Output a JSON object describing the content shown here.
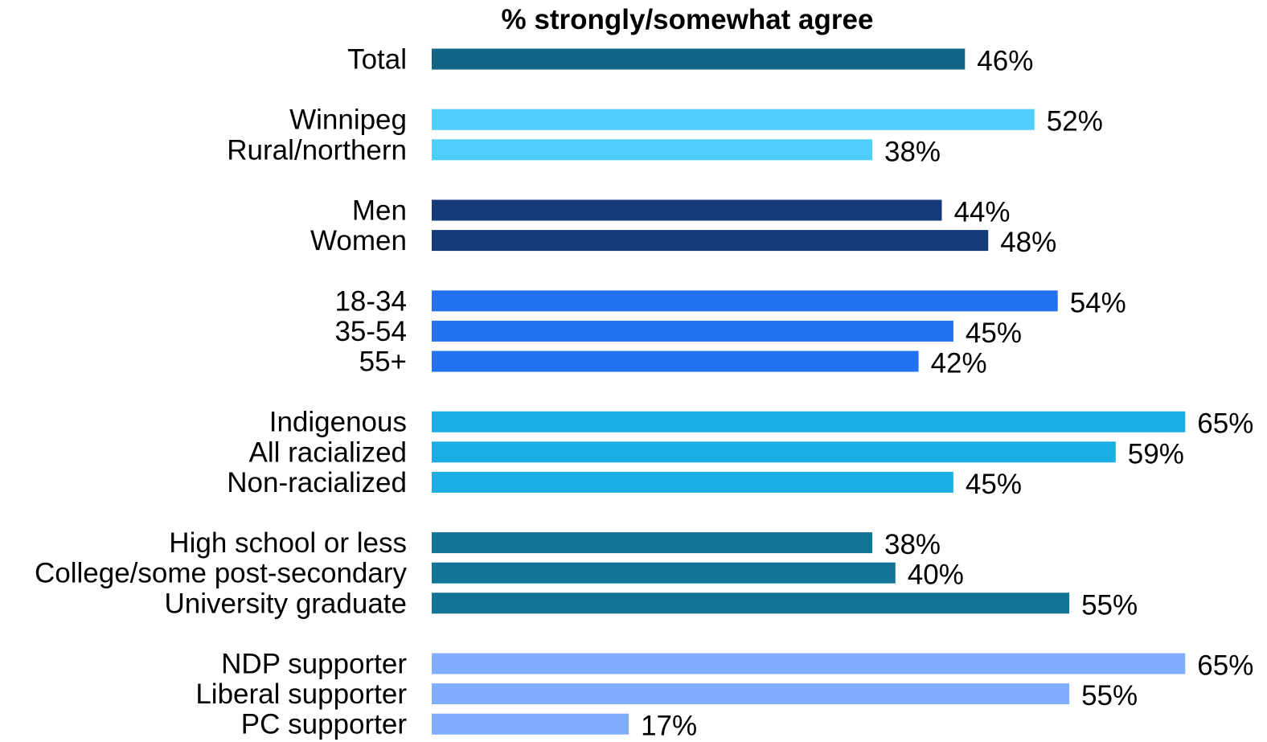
{
  "chart_data": {
    "type": "bar",
    "orientation": "horizontal",
    "title": "% strongly/somewhat agree",
    "xlim": [
      0,
      65
    ],
    "grid": false,
    "value_suffix": "%",
    "groups": [
      {
        "color": "#126484",
        "bars": [
          {
            "label": "Total",
            "value": 46
          }
        ]
      },
      {
        "color": "#4FCEFB",
        "bars": [
          {
            "label": "Winnipeg",
            "value": 52
          },
          {
            "label": "Rural/northern",
            "value": 38
          }
        ]
      },
      {
        "color": "#143A7A",
        "bars": [
          {
            "label": "Men",
            "value": 44
          },
          {
            "label": "Women",
            "value": 48
          }
        ]
      },
      {
        "color": "#2371F0",
        "bars": [
          {
            "label": "18-34",
            "value": 54
          },
          {
            "label": "35-54",
            "value": 45
          },
          {
            "label": "55+",
            "value": 42
          }
        ]
      },
      {
        "color": "#1BAEE5",
        "bars": [
          {
            "label": "Indigenous",
            "value": 65
          },
          {
            "label": "All racialized",
            "value": 59
          },
          {
            "label": "Non-racialized",
            "value": 45
          }
        ]
      },
      {
        "color": "#127598",
        "bars": [
          {
            "label": "High school or less",
            "value": 38
          },
          {
            "label": "College/some post-secondary",
            "value": 40
          },
          {
            "label": "University graduate",
            "value": 55
          }
        ]
      },
      {
        "color": "#80ADFC",
        "bars": [
          {
            "label": "NDP supporter",
            "value": 65
          },
          {
            "label": "Liberal supporter",
            "value": 55
          },
          {
            "label": "PC supporter",
            "value": 17
          }
        ]
      }
    ]
  }
}
